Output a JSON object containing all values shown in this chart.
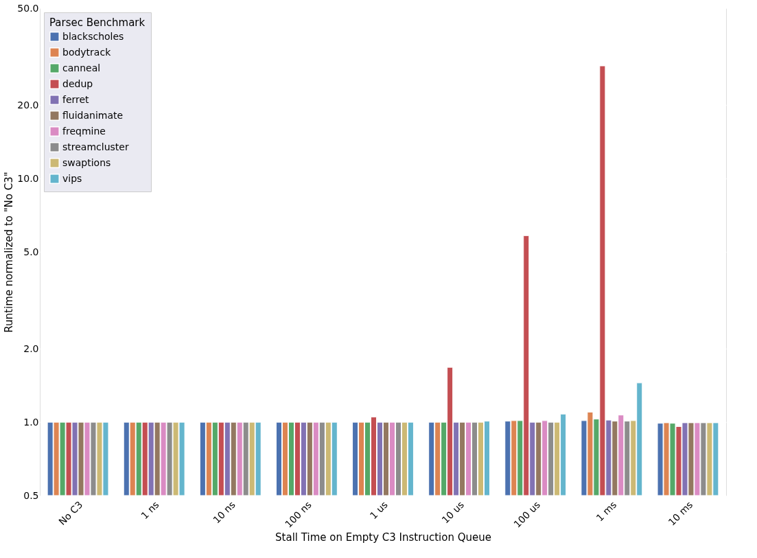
{
  "chart_data": {
    "type": "bar",
    "xlabel": "Stall Time on Empty C3 Instruction Queue",
    "ylabel": "Runtime normalized to \"No C3\"",
    "legend_title": "Parsec Benchmark",
    "categories": [
      "No C3",
      "1 ns",
      "10 ns",
      "100 ns",
      "1 us",
      "10 us",
      "100 us",
      "1 ms",
      "10 ms"
    ],
    "series": [
      {
        "name": "blackscholes",
        "color": "#4c72b0",
        "values": [
          1.0,
          1.0,
          1.0,
          1.0,
          1.0,
          1.0,
          1.01,
          1.015,
          0.99
        ]
      },
      {
        "name": "bodytrack",
        "color": "#dd8452",
        "values": [
          1.0,
          1.0,
          1.0,
          1.0,
          1.0,
          1.0,
          1.015,
          1.1,
          0.995
        ]
      },
      {
        "name": "canneal",
        "color": "#55a868",
        "values": [
          1.0,
          1.0,
          1.0,
          1.0,
          1.0,
          1.0,
          1.015,
          1.03,
          0.99
        ]
      },
      {
        "name": "dedup",
        "color": "#c44e52",
        "values": [
          1.0,
          1.0,
          1.0,
          1.0,
          1.05,
          1.68,
          5.83,
          29.0,
          0.96
        ]
      },
      {
        "name": "ferret",
        "color": "#8172b3",
        "values": [
          1.0,
          1.0,
          1.0,
          1.0,
          1.0,
          1.0,
          1.0,
          1.02,
          0.995
        ]
      },
      {
        "name": "fluidanimate",
        "color": "#937860",
        "values": [
          1.0,
          1.0,
          1.0,
          1.0,
          1.0,
          1.0,
          1.0,
          1.01,
          0.995
        ]
      },
      {
        "name": "freqmine",
        "color": "#da8bc3",
        "values": [
          1.0,
          1.0,
          1.0,
          1.0,
          1.0,
          1.0,
          1.015,
          1.07,
          0.995
        ]
      },
      {
        "name": "streamcluster",
        "color": "#8c8c8c",
        "values": [
          1.0,
          1.0,
          1.0,
          1.0,
          1.0,
          1.0,
          1.0,
          1.01,
          0.995
        ]
      },
      {
        "name": "swaptions",
        "color": "#ccb974",
        "values": [
          1.0,
          1.0,
          1.0,
          1.0,
          1.0,
          1.0,
          1.0,
          1.015,
          0.995
        ]
      },
      {
        "name": "vips",
        "color": "#64b5cd",
        "values": [
          1.0,
          1.0,
          1.0,
          1.0,
          1.0,
          1.01,
          1.08,
          1.45,
          0.995
        ]
      }
    ],
    "log": "y",
    "ylim": [
      0.5,
      50
    ],
    "yticks": [
      {
        "value": 0.5,
        "label": "0.5"
      },
      {
        "value": 1,
        "label": "1.0"
      },
      {
        "value": 2,
        "label": "2.0"
      },
      {
        "value": 5,
        "label": "5.0"
      },
      {
        "value": 10,
        "label": "10.0"
      },
      {
        "value": 20,
        "label": "20.0"
      },
      {
        "value": 50,
        "label": "50.0"
      }
    ],
    "grid": "y",
    "legend": "top left"
  }
}
